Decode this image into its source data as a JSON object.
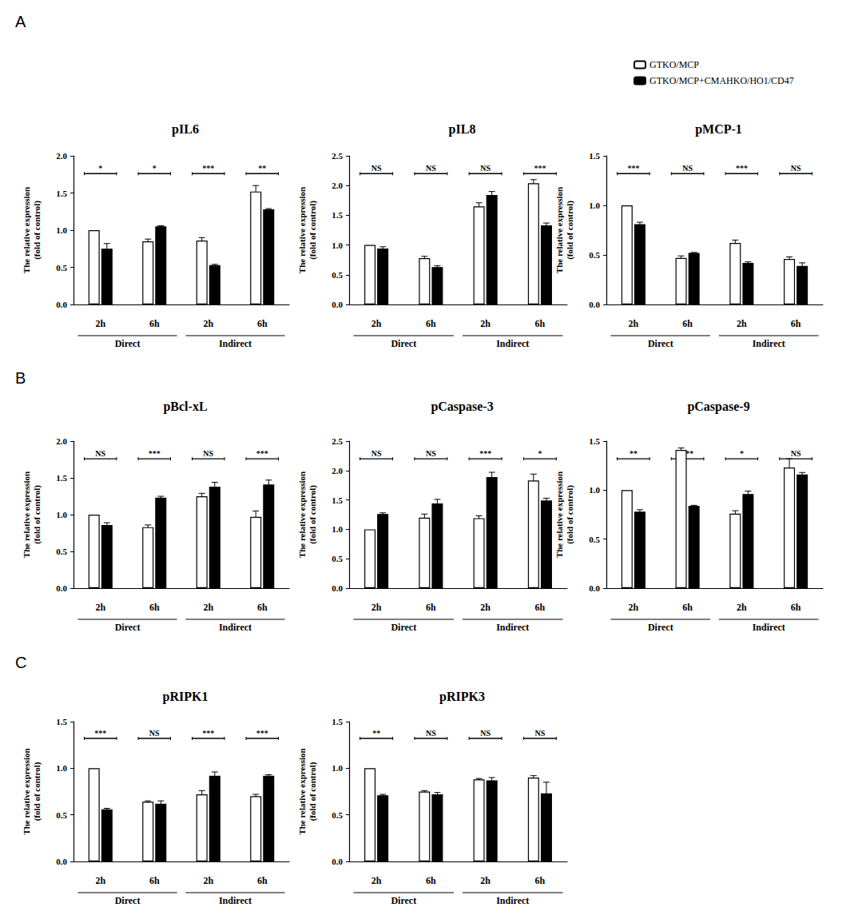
{
  "chart_data": [
    {
      "type": "bar",
      "panel": "A",
      "title": "pIL6",
      "ylabel": "The relative expression\n(fold of control)",
      "categories": [
        "2h",
        "6h",
        "2h",
        "6h"
      ],
      "groups": [
        "Direct",
        "Indirect"
      ],
      "ylim": [
        0,
        2
      ],
      "yticks": [
        {
          "value": 0,
          "label": "0.0"
        },
        0.5,
        {
          "value": 1,
          "label": "1.0"
        },
        1.5,
        {
          "value": 2,
          "label": "2.0"
        }
      ],
      "annotations": [
        "*",
        "*",
        "***",
        "**"
      ],
      "series": [
        {
          "name": "GTKO/MCP",
          "color": "#ffffff",
          "values": [
            1.0,
            0.85,
            0.86,
            1.52
          ],
          "errors": [
            0,
            0.03,
            0.04,
            0.08
          ]
        },
        {
          "name": "GTKO/MCP+CMAHKO/HO1/CD47",
          "color": "#000000",
          "values": [
            0.75,
            1.05,
            0.53,
            1.28
          ],
          "errors": [
            0.07,
            0.01,
            0.01,
            0.01
          ]
        }
      ]
    },
    {
      "type": "bar",
      "title": "pIL8",
      "ylabel": "The relative expression\n(fold of control)",
      "categories": [
        "2h",
        "6h",
        "2h",
        "6h"
      ],
      "groups": [
        "Direct",
        "Indirect"
      ],
      "ylim": [
        0,
        2.5
      ],
      "yticks": [
        {
          "value": 0,
          "label": "0.0"
        },
        0.5,
        {
          "value": 1,
          "label": "1.0"
        },
        1.5,
        {
          "value": 2,
          "label": "2.0"
        },
        2.5
      ],
      "annotations": [
        "NS",
        "NS",
        "NS",
        "***"
      ],
      "series": [
        {
          "name": "GTKO/MCP",
          "color": "#ffffff",
          "values": [
            1.0,
            0.78,
            1.65,
            2.04
          ],
          "errors": [
            0,
            0.03,
            0.06,
            0.06
          ]
        },
        {
          "name": "GTKO/MCP+CMAHKO/HO1/CD47",
          "color": "#000000",
          "values": [
            0.94,
            0.63,
            1.84,
            1.33
          ],
          "errors": [
            0.03,
            0.02,
            0.06,
            0.04
          ]
        }
      ]
    },
    {
      "type": "bar",
      "title": "pMCP-1",
      "ylabel": "The relative expression\n(fold of control)",
      "categories": [
        "2h",
        "6h",
        "2h",
        "6h"
      ],
      "groups": [
        "Direct",
        "Indirect"
      ],
      "ylim": [
        0,
        1.5
      ],
      "yticks": [
        {
          "value": 0,
          "label": "0.0"
        },
        0.5,
        {
          "value": 1,
          "label": "1.0"
        },
        1.5
      ],
      "annotations": [
        "***",
        "NS",
        "***",
        "NS"
      ],
      "series": [
        {
          "name": "GTKO/MCP",
          "color": "#ffffff",
          "values": [
            1.0,
            0.47,
            0.62,
            0.46
          ],
          "errors": [
            0,
            0.02,
            0.03,
            0.02
          ]
        },
        {
          "name": "GTKO/MCP+CMAHKO/HO1/CD47",
          "color": "#000000",
          "values": [
            0.81,
            0.52,
            0.42,
            0.39
          ],
          "errors": [
            0.02,
            0.005,
            0.01,
            0.03
          ]
        }
      ]
    },
    {
      "type": "bar",
      "panel": "B",
      "title": "pBcl-xL",
      "ylabel": "The relative expression\n(fold of control)",
      "categories": [
        "2h",
        "6h",
        "2h",
        "6h"
      ],
      "groups": [
        "Direct",
        "Indirect"
      ],
      "ylim": [
        0,
        2
      ],
      "yticks": [
        {
          "value": 0,
          "label": "0.0"
        },
        0.5,
        {
          "value": 1,
          "label": "1.0"
        },
        1.5,
        {
          "value": 2,
          "label": "2.0"
        }
      ],
      "annotations": [
        "NS",
        "***",
        "NS",
        "***"
      ],
      "series": [
        {
          "name": "GTKO/MCP",
          "color": "#ffffff",
          "values": [
            1.0,
            0.83,
            1.25,
            0.97
          ],
          "errors": [
            0,
            0.03,
            0.04,
            0.08
          ]
        },
        {
          "name": "GTKO/MCP+CMAHKO/HO1/CD47",
          "color": "#000000",
          "values": [
            0.86,
            1.23,
            1.38,
            1.41
          ],
          "errors": [
            0.03,
            0.02,
            0.06,
            0.06
          ]
        }
      ]
    },
    {
      "type": "bar",
      "title": "pCaspase-3",
      "ylabel": "The relative expression\n(fold of control)",
      "categories": [
        "2h",
        "6h",
        "2h",
        "6h"
      ],
      "groups": [
        "Direct",
        "Indirect"
      ],
      "ylim": [
        0,
        2.5
      ],
      "yticks": [
        {
          "value": 0,
          "label": "0.0"
        },
        0.5,
        {
          "value": 1,
          "label": "1.0"
        },
        1.5,
        {
          "value": 2,
          "label": "2.0"
        },
        2.5
      ],
      "annotations": [
        "NS",
        "NS",
        "***",
        "*"
      ],
      "series": [
        {
          "name": "GTKO/MCP",
          "color": "#ffffff",
          "values": [
            1.0,
            1.2,
            1.19,
            1.83
          ],
          "errors": [
            0,
            0.06,
            0.04,
            0.11
          ]
        },
        {
          "name": "GTKO/MCP+CMAHKO/HO1/CD47",
          "color": "#000000",
          "values": [
            1.26,
            1.44,
            1.89,
            1.49
          ],
          "errors": [
            0.02,
            0.07,
            0.08,
            0.04
          ]
        }
      ]
    },
    {
      "type": "bar",
      "title": "pCaspase-9",
      "ylabel": "The relative expression\n(fold of control)",
      "categories": [
        "2h",
        "6h",
        "2h",
        "6h"
      ],
      "groups": [
        "Direct",
        "Indirect"
      ],
      "ylim": [
        0,
        1.5
      ],
      "yticks": [
        {
          "value": 0,
          "label": "0.0"
        },
        0.5,
        {
          "value": 1,
          "label": "1.0"
        },
        1.5
      ],
      "annotations": [
        "**",
        "***",
        "*",
        "NS"
      ],
      "series": [
        {
          "name": "GTKO/MCP",
          "color": "#ffffff",
          "values": [
            1.0,
            1.41,
            0.76,
            1.23
          ],
          "errors": [
            0,
            0.02,
            0.03,
            0.09
          ]
        },
        {
          "name": "GTKO/MCP+CMAHKO/HO1/CD47",
          "color": "#000000",
          "values": [
            0.78,
            0.84,
            0.96,
            1.16
          ],
          "errors": [
            0.02,
            0.005,
            0.03,
            0.02
          ]
        }
      ]
    },
    {
      "type": "bar",
      "panel": "C",
      "title": "pRIPK1",
      "ylabel": "The relative expression\n(fold of control)",
      "categories": [
        "2h",
        "6h",
        "2h",
        "6h"
      ],
      "groups": [
        "Direct",
        "Indirect"
      ],
      "ylim": [
        0,
        1.5
      ],
      "yticks": [
        {
          "value": 0,
          "label": "0.0"
        },
        0.5,
        {
          "value": 1,
          "label": "1.0"
        },
        1.5
      ],
      "annotations": [
        "***",
        "NS",
        "***",
        "***"
      ],
      "series": [
        {
          "name": "GTKO/MCP",
          "color": "#ffffff",
          "values": [
            1.0,
            0.64,
            0.72,
            0.7
          ],
          "errors": [
            0,
            0.01,
            0.04,
            0.02
          ]
        },
        {
          "name": "GTKO/MCP+CMAHKO/HO1/CD47",
          "color": "#000000",
          "values": [
            0.56,
            0.62,
            0.92,
            0.92
          ],
          "errors": [
            0.01,
            0.03,
            0.04,
            0.01
          ]
        }
      ]
    },
    {
      "type": "bar",
      "title": "pRIPK3",
      "ylabel": "The relative expression\n(fold of control)",
      "categories": [
        "2h",
        "6h",
        "2h",
        "6h"
      ],
      "groups": [
        "Direct",
        "Indirect"
      ],
      "ylim": [
        0,
        1.5
      ],
      "yticks": [
        {
          "value": 0,
          "label": "0.0"
        },
        0.5,
        {
          "value": 1,
          "label": "1.0"
        },
        1.5
      ],
      "annotations": [
        "**",
        "NS",
        "NS",
        "NS"
      ],
      "series": [
        {
          "name": "GTKO/MCP",
          "color": "#ffffff",
          "values": [
            1.0,
            0.75,
            0.88,
            0.9
          ],
          "errors": [
            0,
            0.01,
            0.01,
            0.02
          ]
        },
        {
          "name": "GTKO/MCP+CMAHKO/HO1/CD47",
          "color": "#000000",
          "values": [
            0.71,
            0.72,
            0.87,
            0.73
          ],
          "errors": [
            0.01,
            0.02,
            0.03,
            0.12
          ]
        }
      ]
    }
  ]
}
